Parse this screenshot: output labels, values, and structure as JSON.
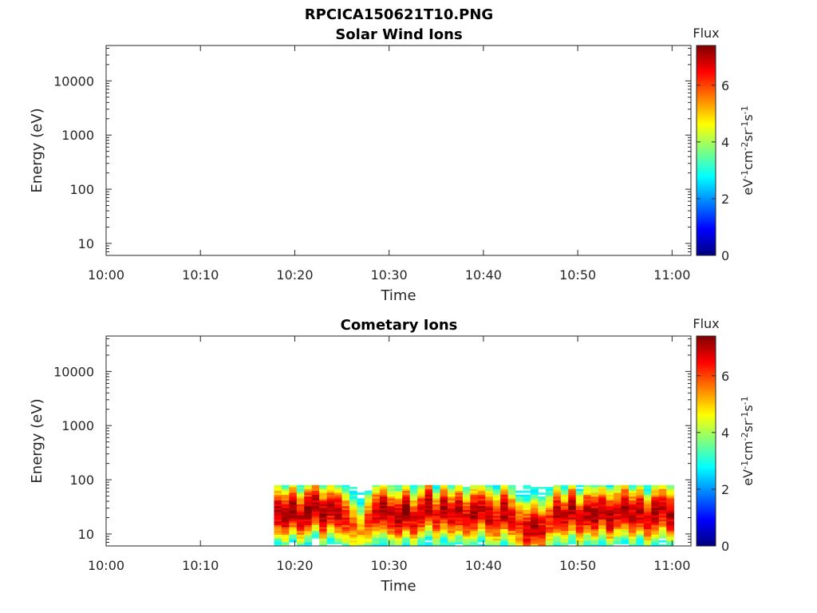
{
  "figure": {
    "title": "RPCICA150621T10.PNG"
  },
  "chart_data": [
    {
      "type": "heatmap",
      "title": "Solar Wind Ions",
      "xlabel": "Time",
      "ylabel": "Energy (eV)",
      "x_ticks": [
        "10:00",
        "10:10",
        "10:20",
        "10:30",
        "10:40",
        "10:50",
        "11:00"
      ],
      "y_ticks": [
        "10",
        "100",
        "1000",
        "10000"
      ],
      "y_scale": "log",
      "x_range_minutes": [
        0,
        62
      ],
      "y_range": [
        6,
        45000
      ],
      "colorbar": {
        "title": "Flux",
        "label": "eV-1cm-2sr-1s-1",
        "ticks": [
          "0",
          "2",
          "4",
          "6"
        ],
        "range": [
          0,
          7.4
        ],
        "colormap": "jet"
      },
      "data": []
    },
    {
      "type": "heatmap",
      "title": "Cometary Ions",
      "xlabel": "Time",
      "ylabel": "Energy (eV)",
      "x_ticks": [
        "10:00",
        "10:10",
        "10:20",
        "10:30",
        "10:40",
        "10:50",
        "11:00"
      ],
      "y_ticks": [
        "10",
        "100",
        "1000",
        "10000"
      ],
      "y_scale": "log",
      "x_range_minutes": [
        0,
        62
      ],
      "y_range": [
        6,
        45000
      ],
      "colorbar": {
        "title": "Flux",
        "label": "eV-1cm-2sr-1s-1",
        "ticks": [
          "0",
          "2",
          "4",
          "6"
        ],
        "range": [
          0,
          7.4
        ],
        "colormap": "jet"
      },
      "data_extent": {
        "time_start": "10:17:30",
        "time_end": "11:00",
        "energy_min": 6,
        "energy_max": 80
      },
      "columns": [
        {
          "t": 17.8,
          "peak": 7.0,
          "e": 25
        },
        {
          "t": 18.6,
          "peak": 7.1,
          "e": 22
        },
        {
          "t": 19.4,
          "peak": 7.2,
          "e": 30
        },
        {
          "t": 20.2,
          "peak": 6.8,
          "e": 20
        },
        {
          "t": 21.0,
          "peak": 7.3,
          "e": 28
        },
        {
          "t": 21.8,
          "peak": 7.0,
          "e": 35
        },
        {
          "t": 22.6,
          "peak": 7.2,
          "e": 22
        },
        {
          "t": 23.4,
          "peak": 6.9,
          "e": 30
        },
        {
          "t": 24.2,
          "peak": 7.1,
          "e": 25
        },
        {
          "t": 25.0,
          "peak": 6.4,
          "e": 20
        },
        {
          "t": 25.8,
          "peak": 5.8,
          "e": 15
        },
        {
          "t": 26.6,
          "peak": 5.2,
          "e": 12
        },
        {
          "t": 27.4,
          "peak": 6.0,
          "e": 18
        },
        {
          "t": 28.2,
          "peak": 6.9,
          "e": 25
        },
        {
          "t": 29.0,
          "peak": 7.2,
          "e": 30
        },
        {
          "t": 29.8,
          "peak": 6.8,
          "e": 22
        },
        {
          "t": 30.6,
          "peak": 7.0,
          "e": 20
        },
        {
          "t": 31.4,
          "peak": 7.3,
          "e": 28
        },
        {
          "t": 32.2,
          "peak": 6.6,
          "e": 18
        },
        {
          "t": 33.0,
          "peak": 6.9,
          "e": 25
        },
        {
          "t": 33.8,
          "peak": 7.2,
          "e": 35
        },
        {
          "t": 34.6,
          "peak": 6.5,
          "e": 20
        },
        {
          "t": 35.4,
          "peak": 7.0,
          "e": 30
        },
        {
          "t": 36.2,
          "peak": 6.7,
          "e": 22
        },
        {
          "t": 37.0,
          "peak": 7.1,
          "e": 28
        },
        {
          "t": 37.8,
          "peak": 6.6,
          "e": 20
        },
        {
          "t": 38.6,
          "peak": 7.2,
          "e": 25
        },
        {
          "t": 39.4,
          "peak": 6.8,
          "e": 30
        },
        {
          "t": 40.2,
          "peak": 7.0,
          "e": 22
        },
        {
          "t": 41.0,
          "peak": 6.5,
          "e": 18
        },
        {
          "t": 41.8,
          "peak": 7.1,
          "e": 28
        },
        {
          "t": 42.6,
          "peak": 6.6,
          "e": 20
        },
        {
          "t": 43.4,
          "peak": 6.2,
          "e": 15
        },
        {
          "t": 44.2,
          "peak": 6.8,
          "e": 12
        },
        {
          "t": 45.0,
          "peak": 7.0,
          "e": 14
        },
        {
          "t": 45.8,
          "peak": 6.7,
          "e": 12
        },
        {
          "t": 46.6,
          "peak": 6.2,
          "e": 18
        },
        {
          "t": 47.4,
          "peak": 7.0,
          "e": 25
        },
        {
          "t": 48.2,
          "peak": 6.7,
          "e": 20
        },
        {
          "t": 49.0,
          "peak": 7.2,
          "e": 30
        },
        {
          "t": 49.8,
          "peak": 6.6,
          "e": 18
        },
        {
          "t": 50.6,
          "peak": 6.9,
          "e": 25
        },
        {
          "t": 51.4,
          "peak": 7.1,
          "e": 22
        },
        {
          "t": 52.2,
          "peak": 6.8,
          "e": 28
        },
        {
          "t": 53.0,
          "peak": 7.0,
          "e": 20
        },
        {
          "t": 53.8,
          "peak": 6.7,
          "e": 25
        },
        {
          "t": 54.6,
          "peak": 7.2,
          "e": 30
        },
        {
          "t": 55.4,
          "peak": 6.9,
          "e": 22
        },
        {
          "t": 56.2,
          "peak": 7.0,
          "e": 28
        },
        {
          "t": 57.0,
          "peak": 6.6,
          "e": 18
        },
        {
          "t": 57.8,
          "peak": 7.1,
          "e": 25
        },
        {
          "t": 58.6,
          "peak": 6.8,
          "e": 30
        },
        {
          "t": 59.4,
          "peak": 7.0,
          "e": 22
        }
      ]
    }
  ]
}
